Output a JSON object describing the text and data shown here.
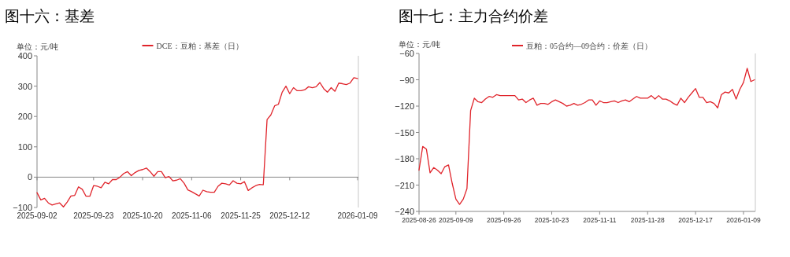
{
  "chart_data": [
    {
      "type": "line",
      "title": "图十六：基差",
      "ylabel": "单位：元/吨",
      "legend": "top",
      "ylim": [
        -100,
        400
      ],
      "yticks": [
        -100,
        0,
        100,
        200,
        300,
        400
      ],
      "categories": [
        "2025-09-02",
        null,
        null,
        null,
        null,
        null,
        null,
        null,
        null,
        null,
        null,
        null,
        null,
        null,
        null,
        "2025-09-23",
        null,
        null,
        null,
        null,
        null,
        null,
        null,
        null,
        null,
        null,
        null,
        null,
        "2025-10-20",
        null,
        null,
        null,
        null,
        null,
        null,
        null,
        null,
        null,
        null,
        null,
        null,
        "2025-11-06",
        null,
        null,
        null,
        null,
        null,
        null,
        null,
        null,
        null,
        null,
        null,
        null,
        "2025-11-25",
        null,
        null,
        null,
        null,
        null,
        null,
        null,
        null,
        null,
        null,
        null,
        null,
        "2025-12-12",
        null,
        null,
        null,
        null,
        null,
        null,
        null,
        null,
        null,
        null,
        null,
        null,
        null,
        null,
        null,
        null,
        null,
        "2026-01-09"
      ],
      "series": [
        {
          "name": "DCE：豆粕：基差（日）",
          "color": "#e0242b",
          "values": [
            -51,
            -75,
            -70,
            -85,
            -92,
            -88,
            -85,
            -98,
            -82,
            -62,
            -60,
            -32,
            -40,
            -63,
            -63,
            -28,
            -30,
            -35,
            -17,
            -22,
            -8,
            -8,
            0,
            12,
            18,
            5,
            15,
            22,
            25,
            30,
            18,
            3,
            18,
            18,
            -2,
            2,
            -12,
            -10,
            -5,
            -20,
            -42,
            -48,
            -55,
            -62,
            -43,
            -48,
            -50,
            -50,
            -30,
            -20,
            -22,
            -26,
            -12,
            -20,
            -22,
            -15,
            -44,
            -35,
            -28,
            -24,
            -25,
            190,
            205,
            235,
            240,
            280,
            300,
            275,
            295,
            285,
            285,
            288,
            298,
            295,
            298,
            312,
            292,
            280,
            295,
            283,
            310,
            308,
            305,
            310,
            328,
            325
          ]
        }
      ]
    },
    {
      "type": "line",
      "title": "图十七：主力合约价差",
      "ylabel": "单位：元/吨",
      "legend": "top",
      "ylim": [
        -240,
        -60
      ],
      "yticks": [
        -240,
        -210,
        -180,
        -150,
        -120,
        -90,
        -60
      ],
      "categories": [
        "2025-08-26",
        null,
        null,
        null,
        null,
        null,
        null,
        null,
        null,
        null,
        "2025-09-09",
        null,
        null,
        null,
        null,
        null,
        null,
        null,
        null,
        null,
        null,
        null,
        null,
        "2025-09-26",
        null,
        null,
        null,
        null,
        null,
        null,
        null,
        null,
        null,
        null,
        null,
        null,
        "2025-10-23",
        null,
        null,
        null,
        null,
        null,
        null,
        null,
        null,
        null,
        null,
        null,
        null,
        "2025-11-11",
        null,
        null,
        null,
        null,
        null,
        null,
        null,
        null,
        null,
        null,
        null,
        null,
        "2025-11-28",
        null,
        null,
        null,
        null,
        null,
        null,
        null,
        null,
        null,
        null,
        null,
        null,
        "2025-12-17",
        null,
        null,
        null,
        null,
        null,
        null,
        null,
        null,
        null,
        null,
        null,
        null,
        "2026-01-09",
        null,
        null,
        null
      ],
      "series": [
        {
          "name": "豆粕：05合约—09合约：价差（日）",
          "color": "#e0242b",
          "values": [
            -193,
            -166,
            -169,
            -196,
            -190,
            -193,
            -197,
            -189,
            -187,
            -208,
            -226,
            -232,
            -226,
            -214,
            -125,
            -111,
            -115,
            -116,
            -112,
            -109,
            -110,
            -107,
            -108,
            -108,
            -108,
            -108,
            -108,
            -113,
            -112,
            -116,
            -113,
            -111,
            -119,
            -117,
            -117,
            -118,
            -115,
            -113,
            -115,
            -117,
            -120,
            -119,
            -117,
            -119,
            -118,
            -116,
            -113,
            -113,
            -119,
            -114,
            -116,
            -116,
            -115,
            -114,
            -116,
            -114,
            -113,
            -115,
            -112,
            -109,
            -111,
            -111,
            -111,
            -108,
            -112,
            -108,
            -112,
            -112,
            -114,
            -117,
            -119,
            -111,
            -116,
            -110,
            -105,
            -100,
            -110,
            -110,
            -116,
            -115,
            -117,
            -122,
            -107,
            -104,
            -105,
            -101,
            -112,
            -101,
            -93,
            -77,
            -92,
            -90
          ]
        }
      ]
    }
  ]
}
